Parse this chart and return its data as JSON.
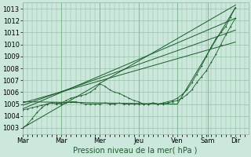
{
  "xlabel": "Pression niveau de la mer( hPa )",
  "background_color": "#cce8dc",
  "grid_color": "#88bb99",
  "line_color": "#1a5c2a",
  "ylim": [
    1002.5,
    1013.5
  ],
  "xlim": [
    0,
    140
  ],
  "yticks": [
    1003,
    1004,
    1005,
    1006,
    1007,
    1008,
    1009,
    1010,
    1011,
    1012,
    1013
  ],
  "xtick_day_positions": [
    0,
    24,
    48,
    72,
    96,
    115,
    132
  ],
  "xtick_day_labels": [
    "Mar",
    "Mar",
    "Mer",
    "Jeu",
    "Ven",
    "Sam",
    "Dir"
  ],
  "vline_positions": [
    0,
    24,
    48,
    72,
    96,
    115
  ],
  "minor_x_step": 3,
  "straight_lines": [
    {
      "x": [
        0,
        132
      ],
      "y": [
        1003.0,
        1013.3
      ]
    },
    {
      "x": [
        0,
        132
      ],
      "y": [
        1004.6,
        1012.2
      ]
    },
    {
      "x": [
        0,
        132
      ],
      "y": [
        1004.9,
        1011.2
      ]
    },
    {
      "x": [
        0,
        132
      ],
      "y": [
        1005.1,
        1010.2
      ]
    },
    {
      "x": [
        0,
        96,
        132
      ],
      "y": [
        1005.2,
        1005.0,
        1013.1
      ]
    }
  ],
  "wiggly_line1_x": [
    0,
    3,
    6,
    9,
    12,
    15,
    18,
    21,
    24,
    27,
    30,
    33,
    36,
    39,
    42,
    45,
    48,
    51,
    54,
    57,
    60,
    63,
    66,
    69,
    72,
    75,
    78,
    81,
    84,
    87,
    90,
    93,
    96,
    99,
    102,
    105,
    108,
    111,
    114,
    117,
    120,
    123,
    126,
    129,
    132
  ],
  "wiggly_line1_y": [
    1003.0,
    1003.3,
    1003.8,
    1004.3,
    1004.7,
    1005.0,
    1005.1,
    1005.0,
    1005.1,
    1005.3,
    1005.5,
    1005.6,
    1005.7,
    1005.8,
    1006.0,
    1006.3,
    1006.7,
    1006.5,
    1006.2,
    1006.0,
    1005.9,
    1005.7,
    1005.5,
    1005.3,
    1005.2,
    1005.0,
    1005.0,
    1005.1,
    1005.0,
    1005.1,
    1005.2,
    1005.3,
    1005.5,
    1005.8,
    1006.2,
    1006.8,
    1007.5,
    1008.2,
    1009.0,
    1009.8,
    1010.5,
    1011.0,
    1011.5,
    1012.3,
    1013.1
  ],
  "wiggly_line2_x": [
    0,
    3,
    6,
    9,
    12,
    15,
    18,
    21,
    24,
    27,
    30,
    33,
    36,
    39,
    42,
    45,
    48,
    51,
    54,
    57,
    60,
    63,
    66,
    69,
    72,
    75,
    78,
    81,
    84,
    87,
    90,
    93,
    96,
    99,
    102,
    105,
    108,
    111,
    114,
    117,
    120,
    123,
    126,
    129,
    132
  ],
  "wiggly_line2_y": [
    1004.5,
    1004.6,
    1004.7,
    1004.8,
    1004.9,
    1005.0,
    1005.1,
    1005.1,
    1005.0,
    1005.1,
    1005.2,
    1005.2,
    1005.1,
    1005.0,
    1005.0,
    1005.0,
    1005.0,
    1005.1,
    1005.0,
    1005.0,
    1005.1,
    1005.0,
    1005.0,
    1005.0,
    1005.0,
    1005.0,
    1005.0,
    1005.1,
    1005.0,
    1005.0,
    1005.1,
    1005.2,
    1005.3,
    1005.5,
    1005.8,
    1006.2,
    1006.8,
    1007.3,
    1007.8,
    1008.5,
    1009.2,
    1010.0,
    1010.8,
    1011.5,
    1012.2
  ],
  "font_size_label": 7,
  "font_size_tick": 6
}
